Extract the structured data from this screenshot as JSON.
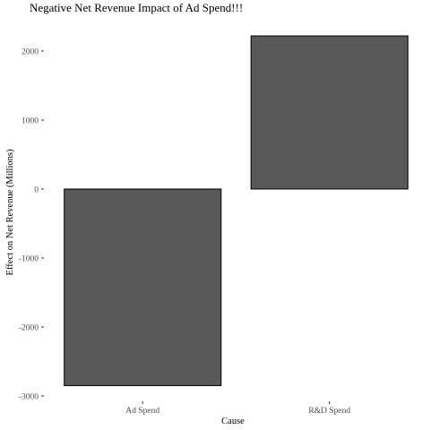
{
  "chart_data": {
    "type": "bar",
    "title": "Negative Net Revenue Impact of Ad Spend!!!",
    "xlabel": "Cause",
    "ylabel": "Effect on Net Revenue (Millions)",
    "categories": [
      "Ad Spend",
      "R&D Spend"
    ],
    "values": [
      -2850,
      2220
    ],
    "ylim": [
      -3000,
      2200
    ],
    "yticks": [
      2000,
      1000,
      0,
      -1000,
      -2000,
      -3000
    ],
    "ytick_labels": [
      "2000",
      "1000",
      "0",
      "-1000",
      "-2000",
      "-3000"
    ],
    "bar_color": "#595959",
    "bar_outline_color": "#000000",
    "grid": false
  }
}
